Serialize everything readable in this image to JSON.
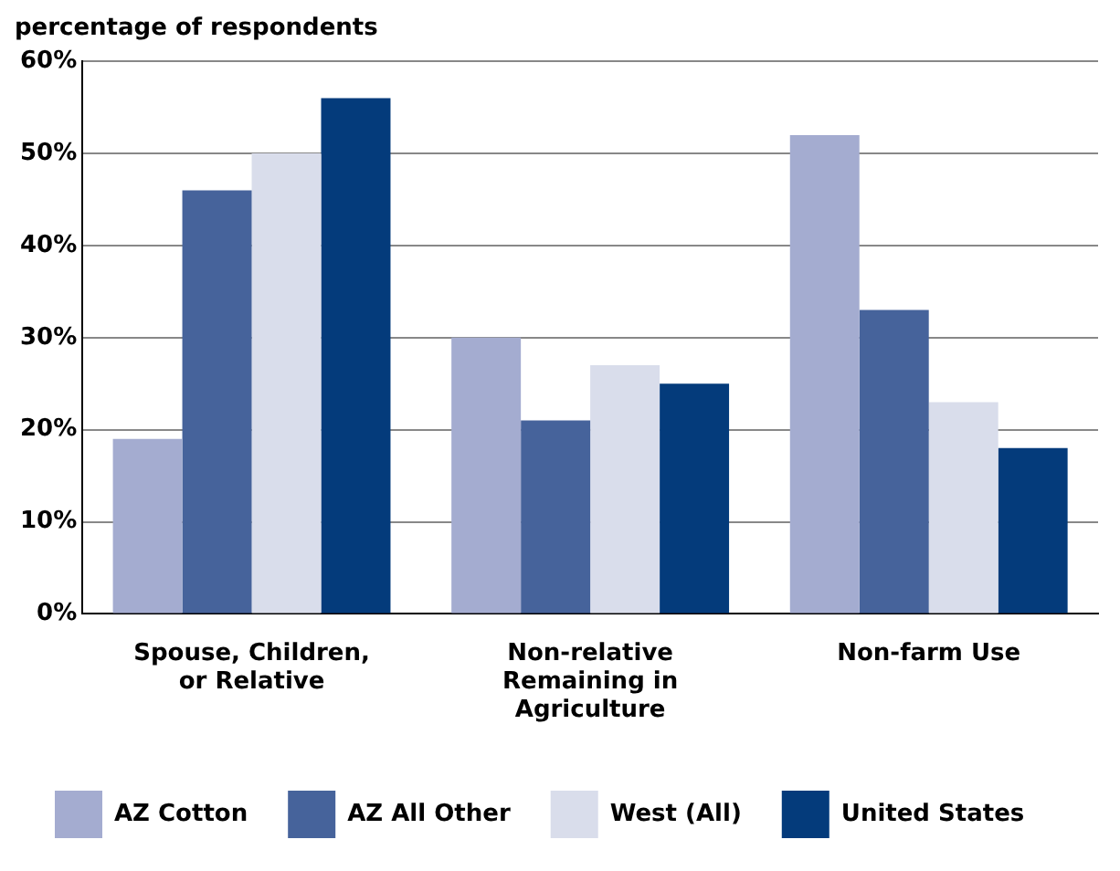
{
  "chart_data": {
    "type": "bar",
    "ylabel": "percentage of respondents",
    "categories": [
      "Spouse, Children, or Relative",
      "Non-relative Remaining in Agriculture",
      "Non-farm Use"
    ],
    "series": [
      {
        "name": "AZ Cotton",
        "color": "#a4acd0",
        "values": [
          19,
          30,
          52
        ]
      },
      {
        "name": "AZ All Other",
        "color": "#46639b",
        "values": [
          46,
          21,
          33
        ]
      },
      {
        "name": "West (All)",
        "color": "#d9ddeb",
        "values": [
          50,
          27,
          23
        ]
      },
      {
        "name": "United States",
        "color": "#043b7b",
        "values": [
          56,
          25,
          18
        ]
      }
    ],
    "ylim": [
      0,
      60
    ],
    "yticks": [
      {
        "value": 0,
        "label": "0%"
      },
      {
        "value": 10,
        "label": "10%"
      },
      {
        "value": 20,
        "label": "20%"
      },
      {
        "value": 30,
        "label": "30%"
      },
      {
        "value": 40,
        "label": "40%"
      },
      {
        "value": 50,
        "label": "50%"
      },
      {
        "value": 60,
        "label": "60%"
      }
    ],
    "grid": "y",
    "legend": "bottom"
  }
}
